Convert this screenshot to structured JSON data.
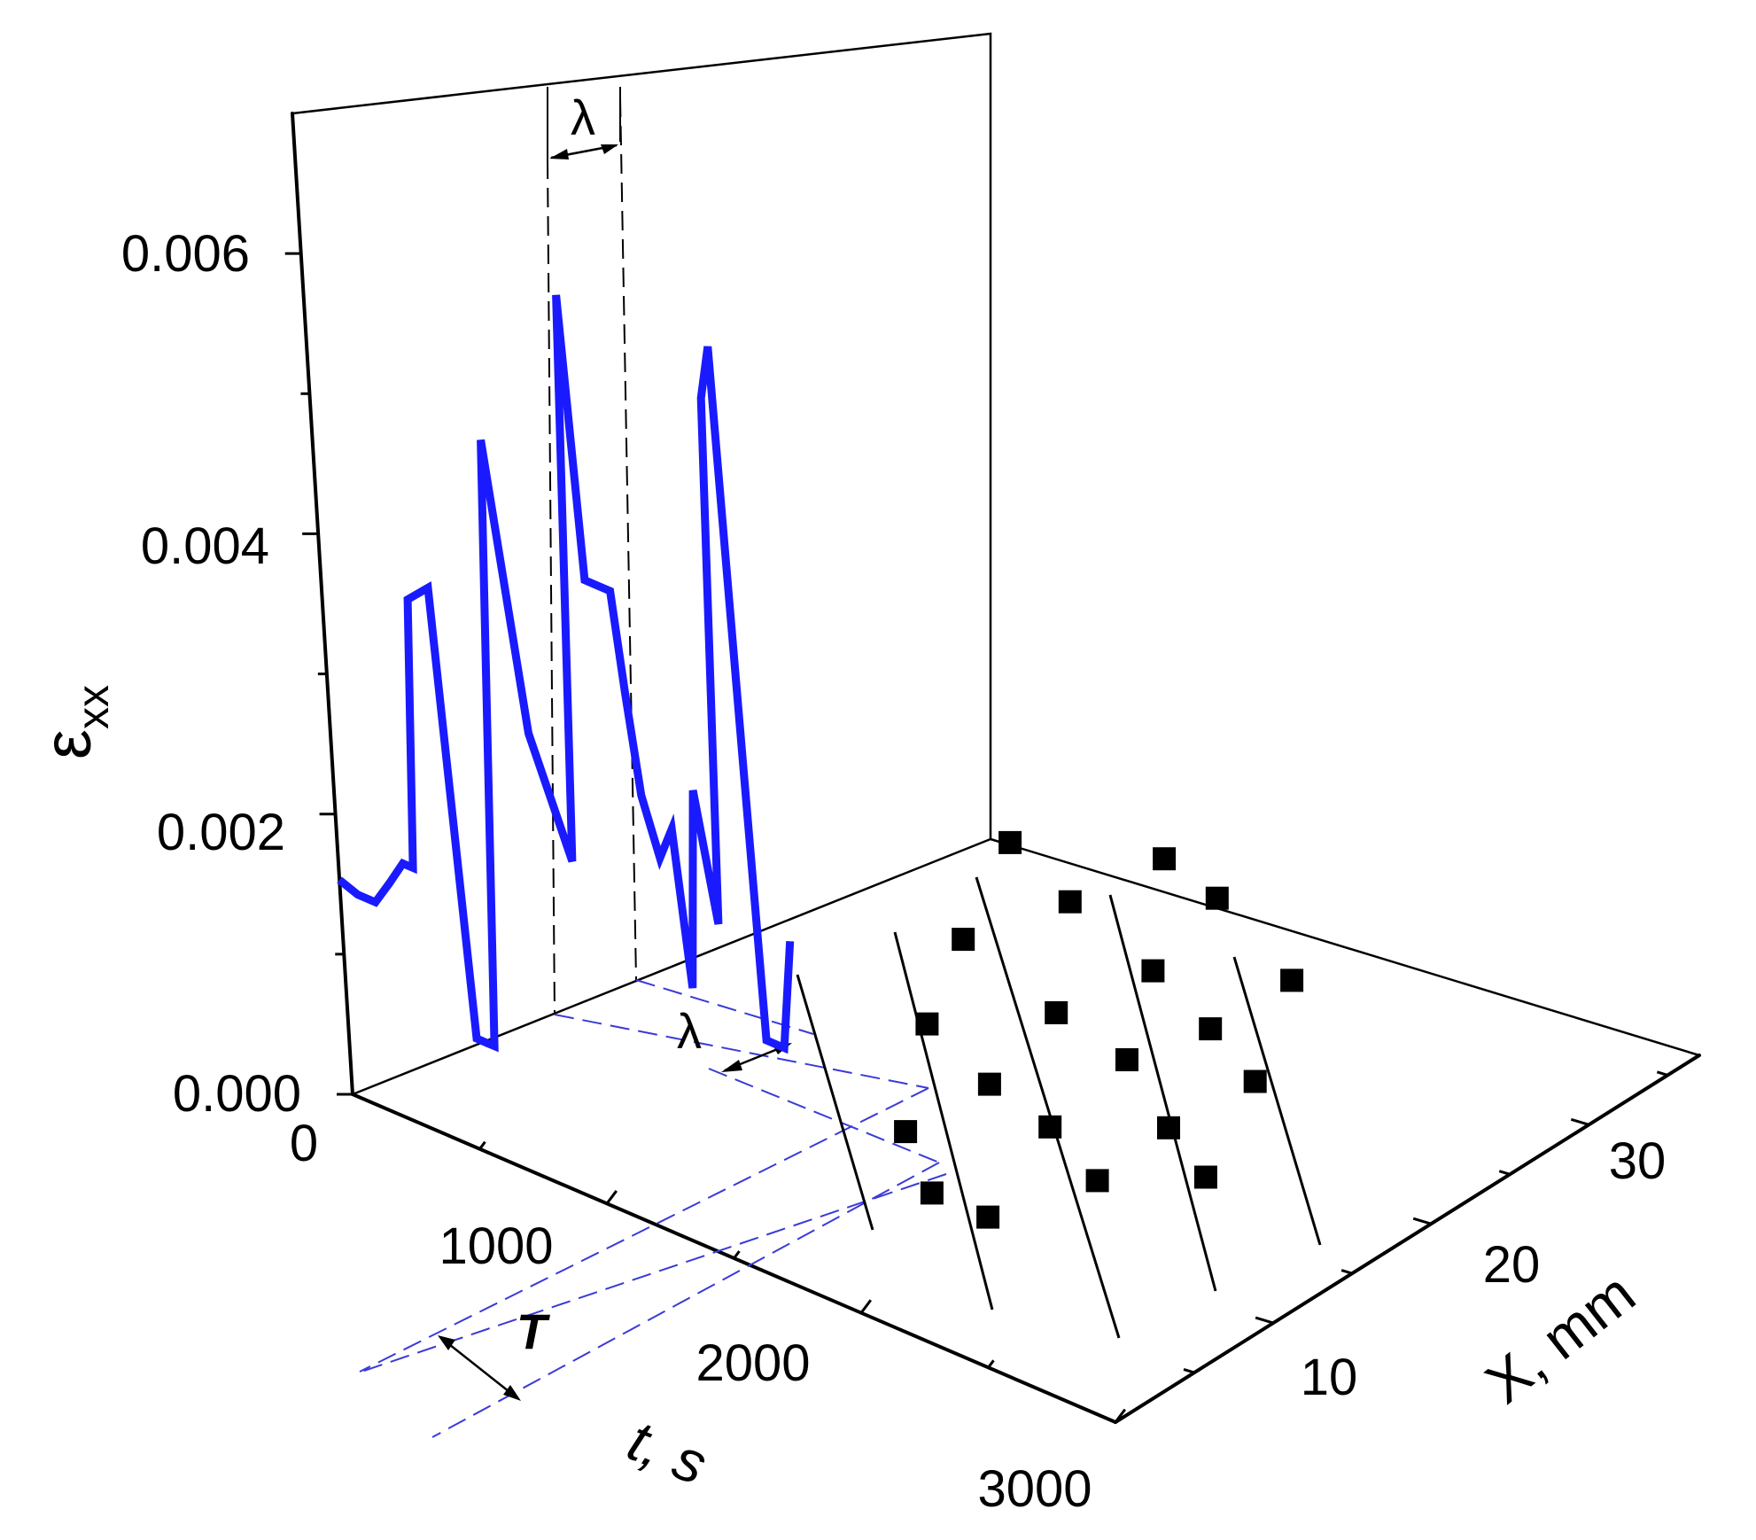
{
  "chart_data": {
    "type": "line",
    "chart_kind": "3d-waterfall",
    "title": "",
    "colors": {
      "strain_line": "#1a1aff",
      "guide_lines": "#3a3ad8",
      "markers": "#000000",
      "axes": "#000000"
    },
    "z_axis": {
      "label_main": "ε",
      "label_sub": "xx",
      "ticks": [
        0.0,
        0.002,
        0.004,
        0.006
      ],
      "tick_labels": [
        "0.000",
        "0.002",
        "0.004",
        "0.006"
      ],
      "range": [
        0,
        0.007
      ]
    },
    "t_axis": {
      "label_main": "t",
      "label_unit": ", s",
      "ticks": [
        0,
        1000,
        2000,
        3000
      ],
      "tick_labels": [
        "0",
        "1000",
        "2000",
        "3000"
      ],
      "range": [
        0,
        3000
      ]
    },
    "x_axis": {
      "label": "X, mm",
      "ticks": [
        10,
        20,
        30
      ],
      "tick_labels": [
        "10",
        "20",
        "30"
      ],
      "range": [
        0,
        37
      ]
    },
    "series": [
      {
        "x": [
          0,
          70,
          140,
          200,
          260,
          300,
          345,
          430,
          515,
          560,
          585,
          680,
          800,
          945,
          1020,
          1065,
          1120,
          1165,
          1200,
          1240,
          1300,
          1355,
          1400,
          1450,
          1520,
          1580,
          1620,
          1685,
          1755,
          1805
        ],
        "y": [
          0.00153,
          0.00148,
          0.00148,
          0.00166,
          0.00185,
          0.00185,
          0.0038,
          0.00395,
          0.0008,
          0.0008,
          0.0008,
          0.0052,
          0.0032,
          0.0024,
          0.0065,
          0.0045,
          0.0045,
          0.0045,
          0.0038,
          0.0031,
          0.0027,
          0.00295,
          0.00185,
          0.0033,
          0.0024,
          0.0062,
          0.0066,
          0.0017,
          0.0017,
          0.0025
        ]
      }
    ],
    "points": [
      {
        "t": 1430,
        "x": 12
      },
      {
        "t": 1720,
        "x": 9
      },
      {
        "t": 1940,
        "x": 9
      },
      {
        "t": 1080,
        "x": 19
      },
      {
        "t": 1450,
        "x": 17
      },
      {
        "t": 1750,
        "x": 16
      },
      {
        "t": 2060,
        "x": 14
      },
      {
        "t": 850,
        "x": 25
      },
      {
        "t": 1340,
        "x": 23
      },
      {
        "t": 1680,
        "x": 22
      },
      {
        "t": 2030,
        "x": 19
      },
      {
        "t": 2300,
        "x": 17
      },
      {
        "t": 600,
        "x": 32
      },
      {
        "t": 960,
        "x": 30
      },
      {
        "t": 1410,
        "x": 28
      },
      {
        "t": 1760,
        "x": 26
      },
      {
        "t": 2060,
        "x": 24
      },
      {
        "t": 1020,
        "x": 35
      },
      {
        "t": 1290,
        "x": 34
      },
      {
        "t": 1770,
        "x": 31
      }
    ],
    "annotations": {
      "wavelength": "λ",
      "period": "T"
    }
  }
}
